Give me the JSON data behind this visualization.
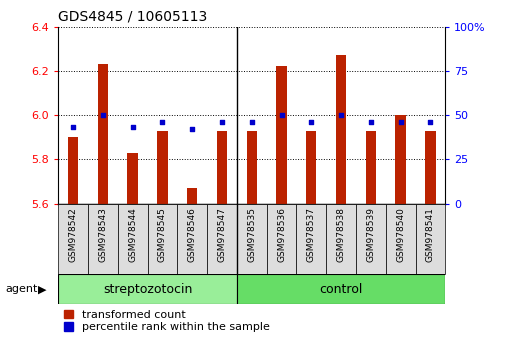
{
  "title": "GDS4845 / 10605113",
  "categories": [
    "GSM978542",
    "GSM978543",
    "GSM978544",
    "GSM978545",
    "GSM978546",
    "GSM978547",
    "GSM978535",
    "GSM978536",
    "GSM978537",
    "GSM978538",
    "GSM978539",
    "GSM978540",
    "GSM978541"
  ],
  "red_values": [
    5.9,
    6.23,
    5.83,
    5.93,
    5.67,
    5.93,
    5.93,
    6.22,
    5.93,
    6.27,
    5.93,
    6.0,
    5.93
  ],
  "blue_pct": [
    43,
    50,
    43,
    46,
    42,
    46,
    46,
    50,
    46,
    50,
    46,
    46,
    46
  ],
  "ylim": [
    5.6,
    6.4
  ],
  "yticks": [
    5.6,
    5.8,
    6.0,
    6.2,
    6.4
  ],
  "right_yticks": [
    0,
    25,
    50,
    75,
    100
  ],
  "right_ylim": [
    0,
    100
  ],
  "bar_color": "#BB2200",
  "dot_color": "#0000CC",
  "group1_label": "streptozotocin",
  "group2_label": "control",
  "group1_n": 6,
  "group2_n": 7,
  "group1_color": "#99EE99",
  "group2_color": "#66DD66",
  "agent_label": "agent",
  "legend_red": "transformed count",
  "legend_blue": "percentile rank within the sample",
  "bar_width": 0.35,
  "baseline": 5.6,
  "sep_after": 5
}
